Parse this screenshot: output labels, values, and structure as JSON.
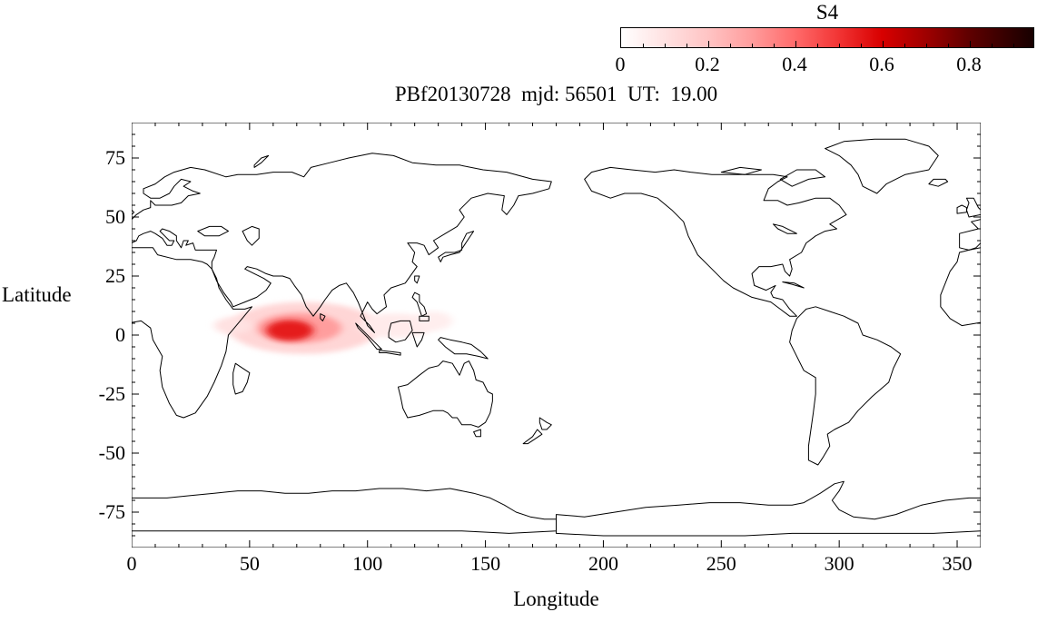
{
  "title": "PBf20130728  mjd: 56501  UT:  19.00",
  "colorbar": {
    "label": "S4",
    "tick_labels": [
      "0",
      "0.2",
      "0.4",
      "0.6",
      "0.8"
    ],
    "tick_values": [
      0,
      0.2,
      0.4,
      0.6,
      0.8
    ],
    "minor_tick_step": 0.05,
    "range": [
      0,
      0.95
    ],
    "stops": [
      {
        "v": 0,
        "c": "#ffffff"
      },
      {
        "v": 0.1,
        "c": "#ffe2e2"
      },
      {
        "v": 0.2,
        "c": "#ffc4c4"
      },
      {
        "v": 0.3,
        "c": "#ff9d9d"
      },
      {
        "v": 0.4,
        "c": "#ff6b6b"
      },
      {
        "v": 0.5,
        "c": "#f23535"
      },
      {
        "v": 0.6,
        "c": "#d80000"
      },
      {
        "v": 0.7,
        "c": "#a00000"
      },
      {
        "v": 0.8,
        "c": "#600000"
      },
      {
        "v": 0.95,
        "c": "#170000"
      }
    ]
  },
  "axes": {
    "x_label": "Longitude",
    "y_label": "Latitude",
    "x_ticks": [
      0,
      50,
      100,
      150,
      200,
      250,
      300,
      350
    ],
    "x_tick_labels": [
      "0",
      "50",
      "100",
      "150",
      "200",
      "250",
      "300",
      "350"
    ],
    "y_ticks": [
      75,
      50,
      25,
      0,
      -25,
      -50,
      -75
    ],
    "y_tick_labels": [
      "75",
      "50",
      "25",
      "0",
      "-25",
      "-50",
      "-75"
    ],
    "x_minor_step": 10,
    "y_minor_step": 5
  },
  "chart_data": {
    "type": "heatmap",
    "title": "PBf20130728  mjd: 56501  UT:  19.00",
    "xlabel": "Longitude",
    "ylabel": "Latitude",
    "xlim": [
      0,
      360
    ],
    "ylim": [
      -90,
      90
    ],
    "x_ticks": [
      0,
      50,
      100,
      150,
      200,
      250,
      300,
      350
    ],
    "y_ticks": [
      75,
      50,
      25,
      0,
      -25,
      -50,
      -75
    ],
    "grid": false,
    "colorbar": {
      "label": "S4",
      "range": [
        0,
        0.95
      ],
      "ticks": [
        0,
        0.2,
        0.4,
        0.6,
        0.8
      ]
    },
    "background": "world coastline outline map, equirectangular projection, longitude 0-360",
    "description": "S4 ionospheric scintillation map for 2013-07-28 (MJD 56501) at 19.00 UT. The only significant activity is an equatorial patch over the Arabian Sea / southern India, peaking near 68E 2N at S4 ~0.55, inside a diffuse pink band stretching roughly 40E-130E between about 8S and 13N. Rest of the globe is at background (S4 ~ 0).",
    "hotspots": [
      {
        "lon": 67,
        "lat": 2,
        "s4": 0.55,
        "sigma_lon": 5,
        "sigma_lat": 2.2
      },
      {
        "lon": 71,
        "lat": 3,
        "s4": 0.3,
        "sigma_lon": 9,
        "sigma_lat": 3.2
      },
      {
        "lon": 73,
        "lat": 3,
        "s4": 0.14,
        "sigma_lon": 16,
        "sigma_lat": 5.5
      },
      {
        "lon": 43,
        "lat": 4,
        "s4": 0.1,
        "sigma_lon": 4,
        "sigma_lat": 1.8
      },
      {
        "lon": 112,
        "lat": 4,
        "s4": 0.07,
        "sigma_lon": 8,
        "sigma_lat": 2.6
      },
      {
        "lon": 128,
        "lat": 6,
        "s4": 0.06,
        "sigma_lon": 4,
        "sigma_lat": 2.0
      }
    ]
  }
}
